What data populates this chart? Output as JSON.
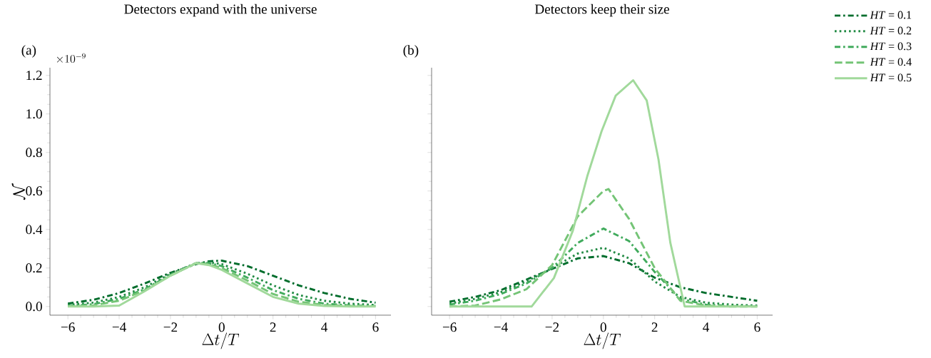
{
  "chart_data": [
    {
      "type": "line",
      "title": "Detectors expand with the universe",
      "xlabel": "\\Delta t/T",
      "ylabel": "\\mathcal{N}",
      "annotations": [
        "(a)",
        "\\times 10^{-9}"
      ],
      "x": [
        -6,
        -5,
        -4,
        -3,
        -2,
        -1,
        -0.5,
        0,
        1,
        2,
        3,
        4,
        5,
        6
      ],
      "series": [
        {
          "color": "#006d2c",
          "line_style": "dashdot",
          "values": [
            0.015,
            0.035,
            0.07,
            0.12,
            0.175,
            0.22,
            0.235,
            0.238,
            0.21,
            0.16,
            0.11,
            0.07,
            0.04,
            0.02
          ]
        },
        {
          "color": "#238b45",
          "line_style": "dotted",
          "values": [
            0.008,
            0.02,
            0.05,
            0.1,
            0.17,
            0.225,
            0.23,
            0.22,
            0.17,
            0.11,
            0.06,
            0.03,
            0.015,
            0.008
          ]
        },
        {
          "color": "#41ab5d",
          "line_style": "dashdot",
          "values": [
            0.003,
            0.012,
            0.04,
            0.09,
            0.165,
            0.225,
            0.225,
            0.21,
            0.15,
            0.085,
            0.04,
            0.015,
            0.006,
            0.003
          ]
        },
        {
          "color": "#74c476",
          "line_style": "dashed",
          "values": [
            0.001,
            0.006,
            0.03,
            0.085,
            0.16,
            0.225,
            0.22,
            0.2,
            0.135,
            0.065,
            0.025,
            0.008,
            0.003,
            0.001
          ]
        },
        {
          "color": "#a1d99b",
          "line_style": "solid",
          "values": [
            0,
            0,
            0.005,
            0.08,
            0.16,
            0.225,
            0.215,
            0.19,
            0.12,
            0.05,
            0.015,
            0.003,
            0,
            0
          ]
        }
      ],
      "xlim": [
        -6.7,
        6.6
      ],
      "ylim": [
        -0.045,
        1.24
      ],
      "xticks": [
        {
          "value": -6,
          "label": "−6"
        },
        {
          "value": -4,
          "label": "−4"
        },
        {
          "value": -2,
          "label": "−2"
        },
        {
          "value": 0,
          "label": "0"
        },
        {
          "value": 2,
          "label": "2"
        },
        {
          "value": 4,
          "label": "4"
        },
        {
          "value": 6,
          "label": "6"
        }
      ],
      "yticks": [
        {
          "value": 0,
          "label": "0.0"
        },
        {
          "value": 0.2,
          "label": "0.2"
        },
        {
          "value": 0.4,
          "label": "0.4"
        },
        {
          "value": 0.6,
          "label": "0.6"
        },
        {
          "value": 0.8,
          "label": "0.8"
        },
        {
          "value": 1.0,
          "label": "1.0"
        },
        {
          "value": 1.2,
          "label": "1.2"
        }
      ],
      "grid": false
    },
    {
      "type": "line",
      "title": "Detectors keep their size",
      "xlabel": "\\Delta t/T",
      "annotations": [
        "(b)"
      ],
      "series": [
        {
          "name": "*HT* = 0.1",
          "color": "#006d2c",
          "line_style": "dashdot",
          "x": [
            -6,
            -5,
            -4,
            -3,
            -2,
            -1,
            0,
            1,
            2,
            3,
            4,
            5,
            6
          ],
          "values": [
            0.025,
            0.05,
            0.085,
            0.14,
            0.195,
            0.25,
            0.262,
            0.225,
            0.15,
            0.1,
            0.07,
            0.05,
            0.03
          ]
        },
        {
          "name": "*HT* = 0.2",
          "color": "#238b45",
          "line_style": "dotted",
          "x": [
            -6,
            -5,
            -4,
            -3,
            -2,
            -1,
            0,
            1,
            2,
            3,
            4,
            5,
            6
          ],
          "values": [
            0.015,
            0.04,
            0.075,
            0.13,
            0.2,
            0.275,
            0.305,
            0.25,
            0.13,
            0.05,
            0.02,
            0.01,
            0.005
          ]
        },
        {
          "name": "*HT* = 0.3",
          "color": "#41ab5d",
          "line_style": "dashdot",
          "x": [
            -6,
            -5,
            -4,
            -3,
            -2,
            -1,
            0,
            1,
            2,
            3,
            4,
            5,
            6
          ],
          "values": [
            0.01,
            0.03,
            0.065,
            0.12,
            0.2,
            0.33,
            0.405,
            0.34,
            0.18,
            0.04,
            0.01,
            0.003,
            0.001
          ]
        },
        {
          "name": "*HT* = 0.4",
          "color": "#74c476",
          "line_style": "dashed",
          "x": [
            -6,
            -5,
            -4,
            -3,
            -2,
            -1,
            0,
            0.2,
            1,
            2,
            3,
            4,
            5,
            6
          ],
          "values": [
            0,
            0.005,
            0.037,
            0.09,
            0.215,
            0.468,
            0.6,
            0.61,
            0.455,
            0.2,
            0.03,
            0.005,
            0,
            0
          ]
        },
        {
          "name": "*HT* = 0.5",
          "color": "#a1d99b",
          "line_style": "solid",
          "x": [
            -6,
            -2.8,
            -1.93,
            -1.19,
            -0.63,
            -0.07,
            0.48,
            1.16,
            1.69,
            2.15,
            2.61,
            3.17,
            6
          ],
          "values": [
            0,
            0,
            0.148,
            0.394,
            0.676,
            0.91,
            1.095,
            1.175,
            1.07,
            0.763,
            0.332,
            0,
            0
          ]
        }
      ],
      "xlim": [
        -6.7,
        6.6
      ],
      "ylim": [
        -0.045,
        1.24
      ],
      "xticks": [
        {
          "value": -6,
          "label": "−6"
        },
        {
          "value": -4,
          "label": "−4"
        },
        {
          "value": -2,
          "label": "−2"
        },
        {
          "value": 0,
          "label": "0"
        },
        {
          "value": 2,
          "label": "2"
        },
        {
          "value": 4,
          "label": "4"
        },
        {
          "value": 6,
          "label": "6"
        }
      ],
      "yticks": [
        {
          "value": 0,
          "label": null
        },
        {
          "value": 0.2,
          "label": null
        },
        {
          "value": 0.4,
          "label": null
        },
        {
          "value": 0.6,
          "label": null
        },
        {
          "value": 0.8,
          "label": null
        },
        {
          "value": 1.0,
          "label": null
        },
        {
          "value": 1.2,
          "label": null
        }
      ],
      "tick_labels": "x",
      "grid": false,
      "legend": "top right"
    }
  ]
}
